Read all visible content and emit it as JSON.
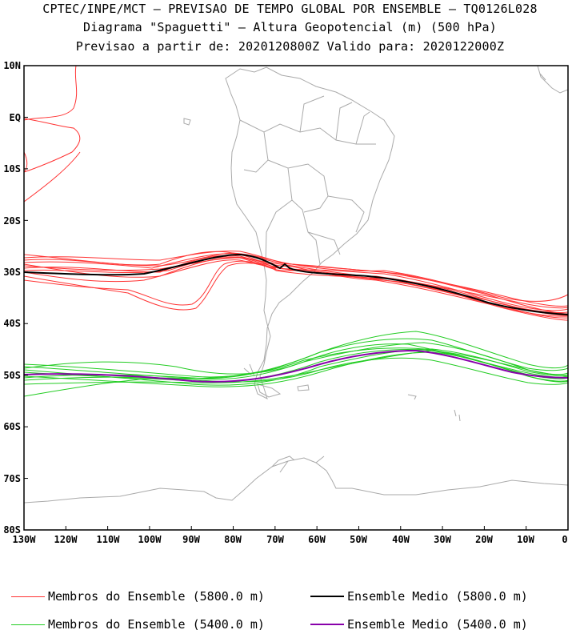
{
  "header": {
    "line1": "CPTEC/INPE/MCT — PREVISAO DE TEMPO GLOBAL POR ENSEMBLE — TQ0126L028",
    "line2": "Diagrama \"Spaguetti\" — Altura Geopotencial (m) (500 hPa)",
    "line3": "Previsao a partir de: 2020120800Z  Valido para: 2020122000Z"
  },
  "axes": {
    "lat_labels": [
      "10N",
      "EQ",
      "10S",
      "20S",
      "30S",
      "40S",
      "50S",
      "60S",
      "70S",
      "80S"
    ],
    "lon_labels": [
      "130W",
      "120W",
      "110W",
      "100W",
      "90W",
      "80W",
      "70W",
      "60W",
      "50W",
      "40W",
      "30W",
      "20W",
      "10W",
      "0"
    ]
  },
  "legend": {
    "members_5800": "Membros do Ensemble (5800.0 m)",
    "mean_5800": "Ensemble Medio (5800.0 m)",
    "members_5400": "Membros do Ensemble (5400.0 m)",
    "mean_5400": "Ensemble Medio (5400.0 m)"
  },
  "colors": {
    "members_5800": "#ff3333",
    "mean_5800": "#000000",
    "members_5400": "#22cc22",
    "mean_5400": "#8800aa",
    "coastline": "#aaaaaa"
  }
}
